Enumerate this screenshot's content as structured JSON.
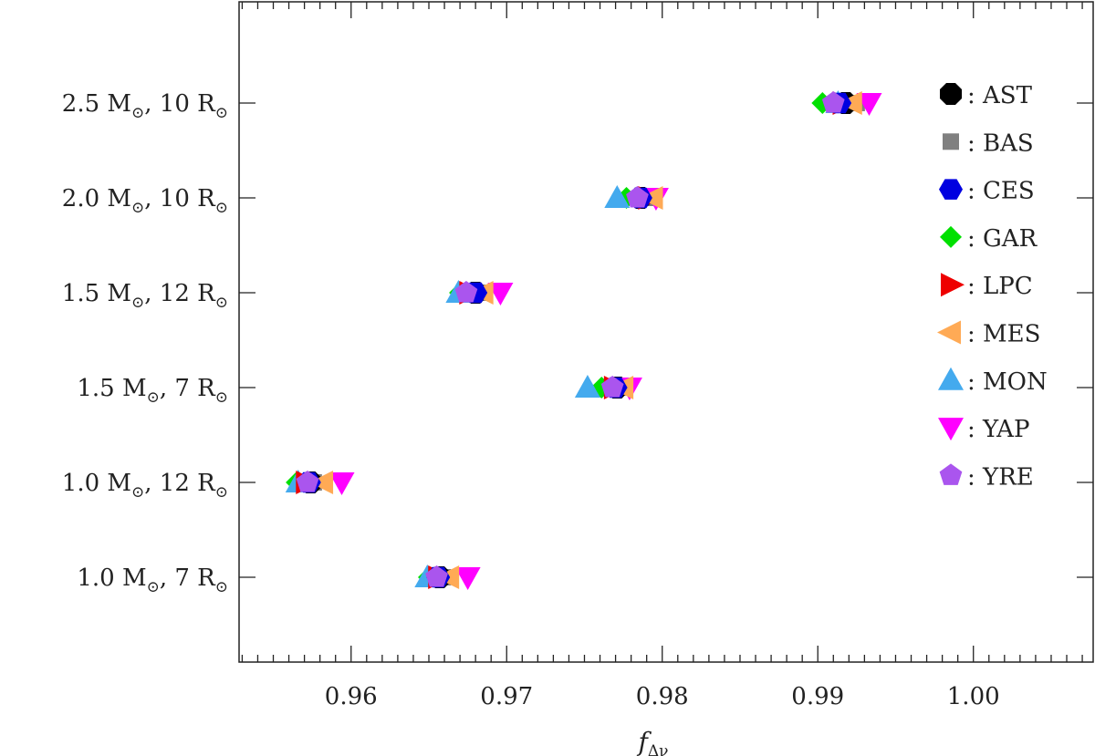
{
  "chart_data": {
    "type": "scatter",
    "title": "",
    "xlabel": "f",
    "xlabel_subscript": "Δν",
    "ylabel": "",
    "xlim": [
      0.9528,
      1.0077
    ],
    "x_ticks": [
      "0.96",
      "0.97",
      "0.98",
      "0.99",
      "1.00"
    ],
    "x_tick_values": [
      0.96,
      0.97,
      0.98,
      0.99,
      1.0
    ],
    "categories": [
      {
        "mass": "2.5",
        "radius": "10"
      },
      {
        "mass": "2.0",
        "radius": "10"
      },
      {
        "mass": "1.5",
        "radius": "12"
      },
      {
        "mass": "1.5",
        "radius": "7"
      },
      {
        "mass": "1.0",
        "radius": "12"
      },
      {
        "mass": "1.0",
        "radius": "7"
      }
    ],
    "unit_mass": "M",
    "unit_radius": "R",
    "sun_symbol": "⊙",
    "legend_position": "right",
    "series": [
      {
        "name": "AST",
        "marker": "octagon",
        "color": "#000000",
        "values": [
          0.9918,
          0.9786,
          0.968,
          0.9771,
          0.9574,
          0.9657
        ]
      },
      {
        "name": "BAS",
        "marker": "square",
        "color": "#808080",
        "values": [
          0.9925,
          0.9789,
          0.9682,
          0.9774,
          0.9576,
          0.9659
        ]
      },
      {
        "name": "CES",
        "marker": "hexagon",
        "color": "#0000e0",
        "values": [
          0.9914,
          0.9786,
          0.968,
          0.977,
          0.9573,
          0.9656
        ]
      },
      {
        "name": "GAR",
        "marker": "diamond",
        "color": "#00e000",
        "values": [
          0.9903,
          0.9777,
          0.967,
          0.9761,
          0.9565,
          0.965
        ]
      },
      {
        "name": "LPC",
        "marker": "triangle-right",
        "color": "#ee0000",
        "values": [
          0.9916,
          0.9791,
          0.9676,
          0.9769,
          0.9571,
          0.9656
        ]
      },
      {
        "name": "MES",
        "marker": "triangle-left",
        "color": "#ffaa55",
        "values": [
          0.9922,
          0.9794,
          0.9685,
          0.9775,
          0.9582,
          0.9663
        ]
      },
      {
        "name": "MON",
        "marker": "triangle-up",
        "color": "#44aaee",
        "values": [
          0.9913,
          0.9771,
          0.9669,
          0.9752,
          0.9566,
          0.9649
        ]
      },
      {
        "name": "YAP",
        "marker": "triangle-down",
        "color": "#ff00ff",
        "values": [
          0.9933,
          0.9796,
          0.9696,
          0.9779,
          0.9594,
          0.9675
        ]
      },
      {
        "name": "YRE",
        "marker": "pentagon",
        "color": "#aa55ee",
        "values": [
          0.991,
          0.9784,
          0.9674,
          0.9768,
          0.9572,
          0.9655
        ]
      }
    ]
  }
}
